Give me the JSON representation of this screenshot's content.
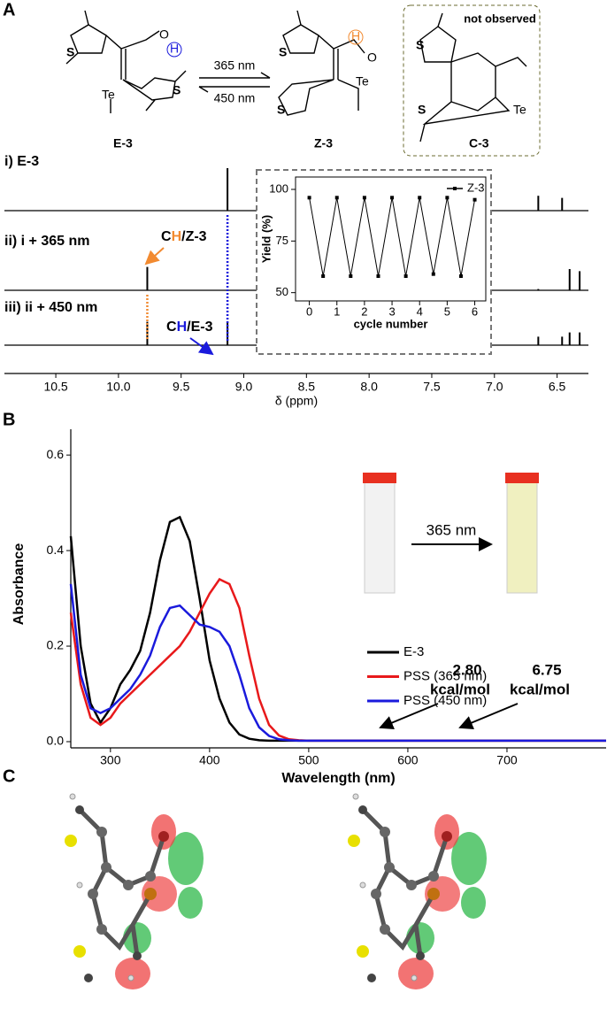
{
  "panel_labels": [
    "A",
    "B",
    "C"
  ],
  "scheme": {
    "compounds": [
      "E-3",
      "Z-3",
      "C-3"
    ],
    "wavelengths": [
      "365 nm",
      "450 nm"
    ],
    "note": "not observed",
    "atom_S": "S",
    "atom_Te": "Te",
    "atom_H": "H"
  },
  "chart_data": [
    {
      "type": "spectrum",
      "xlabel": "δ (ppm)",
      "xlim": [
        10.91,
        6.25
      ],
      "xticks": [
        10.5,
        {
          "value": 10,
          "label": "10.0"
        },
        9.5,
        {
          "value": 9,
          "label": "9.0"
        },
        8.5,
        {
          "value": 8,
          "label": "8.0"
        },
        7.5,
        {
          "value": 7,
          "label": "7.0"
        },
        6.5
      ],
      "series": [
        {
          "name": "i) E-3",
          "color": "#000000",
          "x": [
            9.13,
            6.65,
            6.46
          ],
          "values": [
            1.0,
            0.35,
            0.3
          ]
        },
        {
          "name": "ii) i + 365 nm",
          "color": "#000000",
          "x": [
            9.77,
            6.65,
            6.4,
            6.32
          ],
          "values": [
            0.55,
            0.03,
            0.5,
            0.45
          ]
        },
        {
          "name": "iii) ii + 450 nm",
          "color": "#000000",
          "x": [
            9.77,
            9.13,
            6.65,
            6.46,
            6.4,
            6.32
          ],
          "values": [
            0.55,
            0.55,
            0.2,
            0.2,
            0.3,
            0.3
          ]
        }
      ],
      "annotations": [
        {
          "parts": [
            "C",
            "H",
            "/Z-3"
          ],
          "color": "#f28a30"
        },
        {
          "parts": [
            "C",
            "H",
            "/E-3"
          ],
          "color": "#1a1adc"
        }
      ]
    },
    {
      "type": "line",
      "xlabel": "cycle number",
      "ylabel": "Yield (%)",
      "xlim": [
        -0.5,
        6.4
      ],
      "ylim": [
        46,
        106
      ],
      "xticks": [
        0,
        1,
        2,
        3,
        4,
        5,
        6
      ],
      "yticks": [
        50,
        75,
        100
      ],
      "x": [
        0,
        0.5,
        1,
        1.5,
        2,
        2.5,
        3,
        3.5,
        4,
        4.5,
        5,
        5.5,
        6
      ],
      "series": [
        {
          "name": "Z-3",
          "color": "#000000",
          "values": [
            96,
            58,
            96,
            58,
            96,
            58,
            96,
            58,
            96,
            59,
            96,
            58,
            95
          ]
        }
      ]
    },
    {
      "type": "line",
      "xlabel": "Wavelength (nm)",
      "ylabel": "Absorbance",
      "xlim": [
        260,
        800
      ],
      "ylim": [
        -0.013,
        0.654
      ],
      "xticks": [
        300,
        400,
        500,
        600,
        700
      ],
      "yticks": [
        {
          "value": 0,
          "label": "0.0"
        },
        {
          "value": 0.2,
          "label": "0.2"
        },
        {
          "value": 0.4,
          "label": "0.4"
        },
        {
          "value": 0.6,
          "label": "0.6"
        }
      ],
      "annotation": "365 nm",
      "x": [
        260,
        270,
        280,
        290,
        300,
        310,
        320,
        330,
        340,
        350,
        360,
        370,
        380,
        390,
        400,
        410,
        420,
        430,
        440,
        450,
        460,
        470,
        480,
        490,
        500,
        550,
        600,
        650,
        700,
        750,
        800
      ],
      "series": [
        {
          "name": "E-3",
          "color": "#000000",
          "values": [
            0.43,
            0.2,
            0.08,
            0.04,
            0.07,
            0.12,
            0.15,
            0.19,
            0.27,
            0.38,
            0.46,
            0.47,
            0.42,
            0.3,
            0.17,
            0.09,
            0.04,
            0.015,
            0.006,
            0.003,
            0.002,
            0.002,
            0.002,
            0.002,
            0.002,
            0.002,
            0.002,
            0.002,
            0.002,
            0.002,
            0.002
          ]
        },
        {
          "name": "PSS (365 nm)",
          "color": "#e8191b",
          "values": [
            0.27,
            0.12,
            0.05,
            0.035,
            0.05,
            0.08,
            0.1,
            0.12,
            0.14,
            0.16,
            0.18,
            0.2,
            0.23,
            0.27,
            0.31,
            0.34,
            0.33,
            0.28,
            0.18,
            0.09,
            0.035,
            0.013,
            0.005,
            0.003,
            0.002,
            0.002,
            0.002,
            0.002,
            0.002,
            0.002,
            0.002
          ]
        },
        {
          "name": "PSS (450 nm)",
          "color": "#1a1adc",
          "values": [
            0.33,
            0.14,
            0.07,
            0.06,
            0.07,
            0.09,
            0.11,
            0.14,
            0.18,
            0.24,
            0.28,
            0.285,
            0.265,
            0.245,
            0.24,
            0.23,
            0.2,
            0.14,
            0.07,
            0.03,
            0.012,
            0.005,
            0.003,
            0.002,
            0.002,
            0.002,
            0.002,
            0.002,
            0.002,
            0.002,
            0.002
          ]
        }
      ]
    }
  ],
  "panel_c": [
    {
      "energy": "2.80",
      "unit": "kcal/mol"
    },
    {
      "energy": "6.75",
      "unit": "kcal/mol"
    }
  ]
}
